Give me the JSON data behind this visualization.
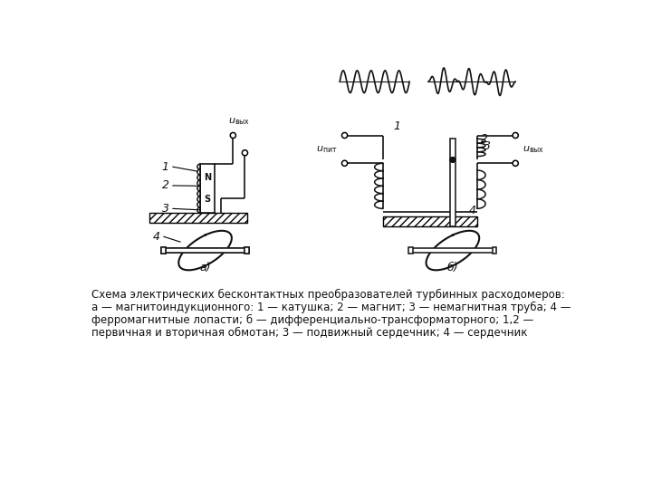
{
  "bg_color": "#ffffff",
  "text_color": "#111111",
  "title_text": "Схема электрических бесконтактных преобразователей турбинных расходомеров:",
  "caption_line1": "а — магнитоиндукционного: 1 — катушка; 2 — магнит; 3 — немагнитная труба; 4 —",
  "caption_line2": "ферромагнитные лопасти; б — дифференциально-трансформаторного; 1,2 —",
  "caption_line3": "первичная и вторичная обмотан; 3 — подвижный сердечник; 4 — сердечник",
  "label_a": "а)",
  "label_b": "б)"
}
